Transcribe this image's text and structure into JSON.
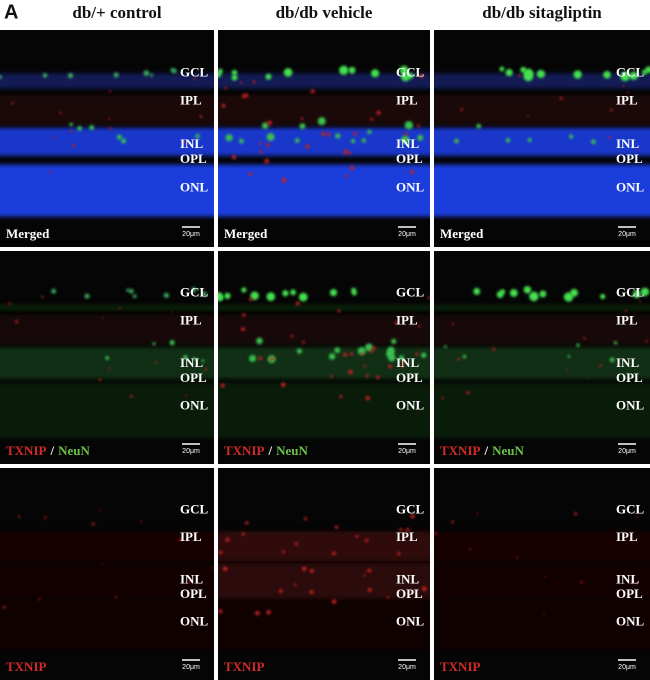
{
  "panel_label": "A",
  "columns": [
    "db/+ control",
    "db/db vehicle",
    "db/db sitagliptin"
  ],
  "layers": [
    "GCL",
    "IPL",
    "INL",
    "OPL",
    "ONL"
  ],
  "scale_bar": "20μm",
  "rows": [
    {
      "channels": [
        {
          "name": "Merged",
          "color": "#ffffff"
        }
      ]
    },
    {
      "channels": [
        {
          "name": "TXNIP",
          "color": "#d42a2a"
        },
        {
          "name": "NeuN",
          "color": "#6cc04a"
        }
      ],
      "separator": "/"
    },
    {
      "channels": [
        {
          "name": "TXNIP",
          "color": "#d42a2a"
        }
      ]
    }
  ]
}
